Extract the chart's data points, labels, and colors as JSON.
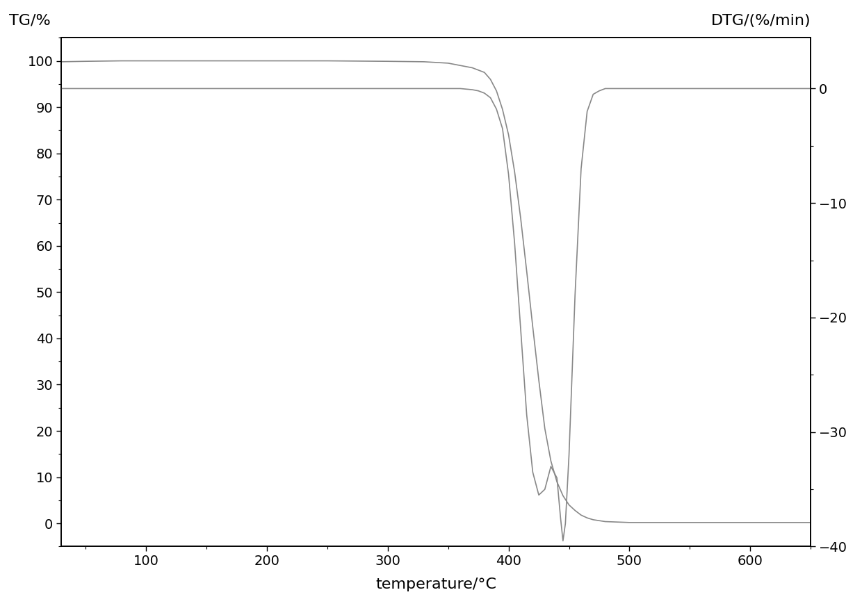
{
  "xlabel": "temperature/°C",
  "ylabel_left": "TG/%",
  "ylabel_right": "DTG/(%/min)",
  "x_min": 30,
  "x_max": 650,
  "x_ticks": [
    100,
    200,
    300,
    400,
    500,
    600
  ],
  "y_left_min": -5,
  "y_left_max": 105,
  "y_left_ticks": [
    0,
    10,
    20,
    30,
    40,
    50,
    60,
    70,
    80,
    90,
    100
  ],
  "y_right_min": -40,
  "y_right_max": 4.44,
  "y_right_ticks": [
    0,
    -10,
    -20,
    -30,
    -40
  ],
  "line_color": "#888888",
  "bg_color": "#ffffff",
  "tg_data": {
    "x": [
      30,
      50,
      80,
      100,
      150,
      200,
      250,
      300,
      330,
      350,
      360,
      370,
      380,
      385,
      390,
      395,
      400,
      405,
      410,
      415,
      420,
      425,
      430,
      435,
      440,
      445,
      450,
      455,
      460,
      465,
      470,
      480,
      490,
      500,
      520,
      550,
      600,
      650
    ],
    "y": [
      99.8,
      99.9,
      100.0,
      100.0,
      100.0,
      100.0,
      100.0,
      99.9,
      99.8,
      99.5,
      99.0,
      98.5,
      97.5,
      96.0,
      93.5,
      89.5,
      84.0,
      76.0,
      66.0,
      54.5,
      42.5,
      31.0,
      20.5,
      13.5,
      9.0,
      6.0,
      4.0,
      2.8,
      1.8,
      1.2,
      0.8,
      0.4,
      0.3,
      0.2,
      0.2,
      0.2,
      0.2,
      0.2
    ]
  },
  "dtg_data": {
    "x": [
      30,
      50,
      80,
      100,
      150,
      200,
      250,
      300,
      330,
      340,
      350,
      360,
      370,
      375,
      380,
      385,
      390,
      395,
      400,
      405,
      410,
      415,
      420,
      425,
      430,
      435,
      440,
      443,
      445,
      447,
      450,
      455,
      460,
      465,
      470,
      475,
      480,
      490,
      500,
      520,
      550,
      600,
      650
    ],
    "y": [
      0.0,
      0.0,
      0.0,
      0.0,
      0.0,
      0.0,
      0.0,
      0.0,
      0.0,
      0.0,
      0.0,
      0.0,
      -0.1,
      -0.2,
      -0.4,
      -0.8,
      -1.8,
      -3.5,
      -7.5,
      -13.5,
      -21.0,
      -28.5,
      -33.5,
      -35.5,
      -35.0,
      -33.0,
      -34.0,
      -37.5,
      -39.5,
      -38.0,
      -32.0,
      -18.0,
      -7.0,
      -2.0,
      -0.5,
      -0.2,
      0.0,
      0.0,
      0.0,
      0.0,
      0.0,
      0.0,
      0.0
    ]
  },
  "font_size_labels": 16,
  "font_size_ticks": 14,
  "spine_linewidth": 1.2
}
